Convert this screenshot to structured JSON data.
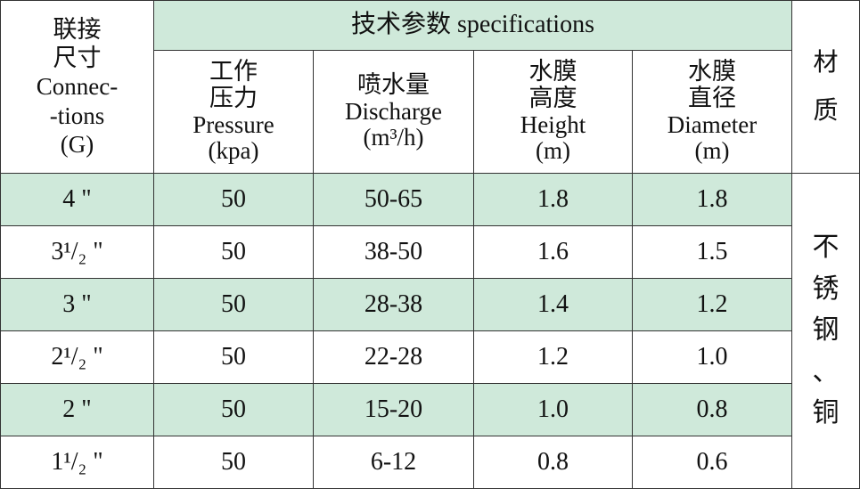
{
  "header": {
    "connections": [
      "联接",
      "尺寸",
      "Connec-",
      "-tions",
      "(G)"
    ],
    "group": "技术参数 specifications",
    "columns": [
      [
        "工作",
        "压力",
        "Pressure",
        "(kpa)"
      ],
      [
        "喷水量",
        "Discharge",
        "(m³/h)"
      ],
      [
        "水膜",
        "高度",
        "Height",
        "(m)"
      ],
      [
        "水膜",
        "直径",
        "Diameter",
        "(m)"
      ]
    ],
    "material": [
      "材",
      "质"
    ]
  },
  "rows": [
    [
      "4 \"",
      "50",
      "50-65",
      "1.8",
      "1.8"
    ],
    [
      "3¹/₂ \"",
      "50",
      "38-50",
      "1.6",
      "1.5"
    ],
    [
      "3 \"",
      "50",
      "28-38",
      "1.4",
      "1.2"
    ],
    [
      "2¹/₂ \"",
      "50",
      "22-28",
      "1.2",
      "1.0"
    ],
    [
      "2 \"",
      "50",
      "15-20",
      "1.0",
      "0.8"
    ],
    [
      "1¹/₂ \"",
      "50",
      "6-12",
      "0.8",
      "0.6"
    ]
  ],
  "material": [
    "不",
    "锈",
    "钢",
    "、",
    "铜"
  ]
}
